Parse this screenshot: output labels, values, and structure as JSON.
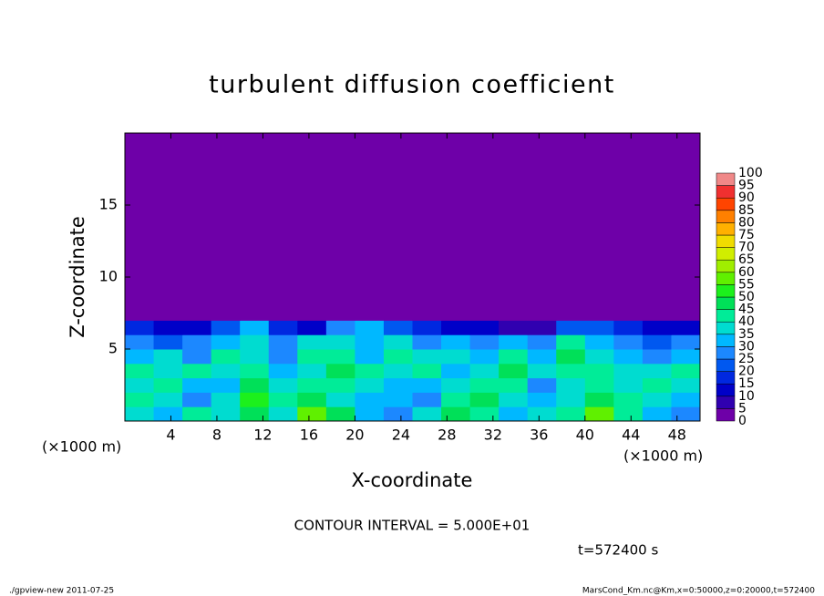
{
  "chart_data": {
    "type": "heatmap",
    "title": "turbulent diffusion coefficient",
    "xlabel": "X-coordinate",
    "ylabel": "Z-coordinate",
    "x_unit": "(×1000 m)",
    "xlim": [
      0,
      50
    ],
    "ylim": [
      0,
      20
    ],
    "xticks": [
      4,
      8,
      12,
      16,
      20,
      24,
      28,
      32,
      36,
      40,
      44,
      48
    ],
    "yticks": [
      5,
      10,
      15
    ],
    "x_bins": [
      0,
      2.5,
      5,
      7.5,
      10,
      12.5,
      15,
      17.5,
      20,
      22.5,
      25,
      27.5,
      30,
      32.5,
      35,
      37.5,
      40,
      42.5,
      45,
      47.5,
      50
    ],
    "z_bins": [
      0,
      1,
      2,
      3,
      4,
      5,
      6,
      7,
      20
    ],
    "z": [
      [
        35,
        30,
        40,
        35,
        45,
        35,
        55,
        45,
        30,
        25,
        35,
        45,
        40,
        30,
        35,
        40,
        55,
        40,
        30,
        25
      ],
      [
        40,
        35,
        25,
        35,
        50,
        40,
        45,
        35,
        30,
        30,
        25,
        40,
        45,
        35,
        30,
        35,
        45,
        40,
        35,
        30
      ],
      [
        35,
        40,
        30,
        30,
        45,
        35,
        40,
        40,
        35,
        30,
        30,
        35,
        40,
        40,
        25,
        35,
        40,
        35,
        40,
        35
      ],
      [
        40,
        35,
        40,
        35,
        40,
        30,
        35,
        45,
        40,
        35,
        40,
        30,
        35,
        45,
        35,
        40,
        40,
        35,
        35,
        40
      ],
      [
        30,
        35,
        25,
        40,
        35,
        25,
        40,
        40,
        30,
        40,
        35,
        35,
        30,
        40,
        30,
        45,
        35,
        30,
        25,
        30
      ],
      [
        25,
        20,
        25,
        30,
        35,
        25,
        35,
        35,
        30,
        35,
        25,
        30,
        25,
        30,
        25,
        40,
        30,
        25,
        20,
        25
      ],
      [
        15,
        10,
        10,
        20,
        30,
        15,
        10,
        25,
        30,
        20,
        15,
        10,
        10,
        5,
        5,
        20,
        20,
        15,
        10,
        10
      ],
      [
        0,
        0,
        0,
        0,
        0,
        0,
        0,
        0,
        0,
        0,
        0,
        0,
        0,
        0,
        0,
        0,
        0,
        0,
        0,
        0
      ]
    ],
    "colorbar_levels": [
      0,
      5,
      10,
      15,
      20,
      25,
      30,
      35,
      40,
      45,
      50,
      55,
      60,
      65,
      70,
      75,
      80,
      85,
      90,
      95,
      100
    ],
    "colors": [
      "#6e00a8",
      "#3000b0",
      "#0000c8",
      "#0028e0",
      "#0058f0",
      "#1c88ff",
      "#00b8ff",
      "#00dcd0",
      "#00ec98",
      "#00e058",
      "#1cf01c",
      "#60f000",
      "#a0ee00",
      "#d0ee00",
      "#f0dc00",
      "#ffb000",
      "#ff8000",
      "#ff4400",
      "#f03030",
      "#f08888"
    ],
    "annotation": "CONTOUR INTERVAL = 5.000E+01",
    "time_label": "t=572400 s",
    "footer_left": "./gpview-new  2011-07-25",
    "footer_right": "MarsCond_Km.nc@Km,x=0:50000,z=0:20000,t=572400"
  }
}
